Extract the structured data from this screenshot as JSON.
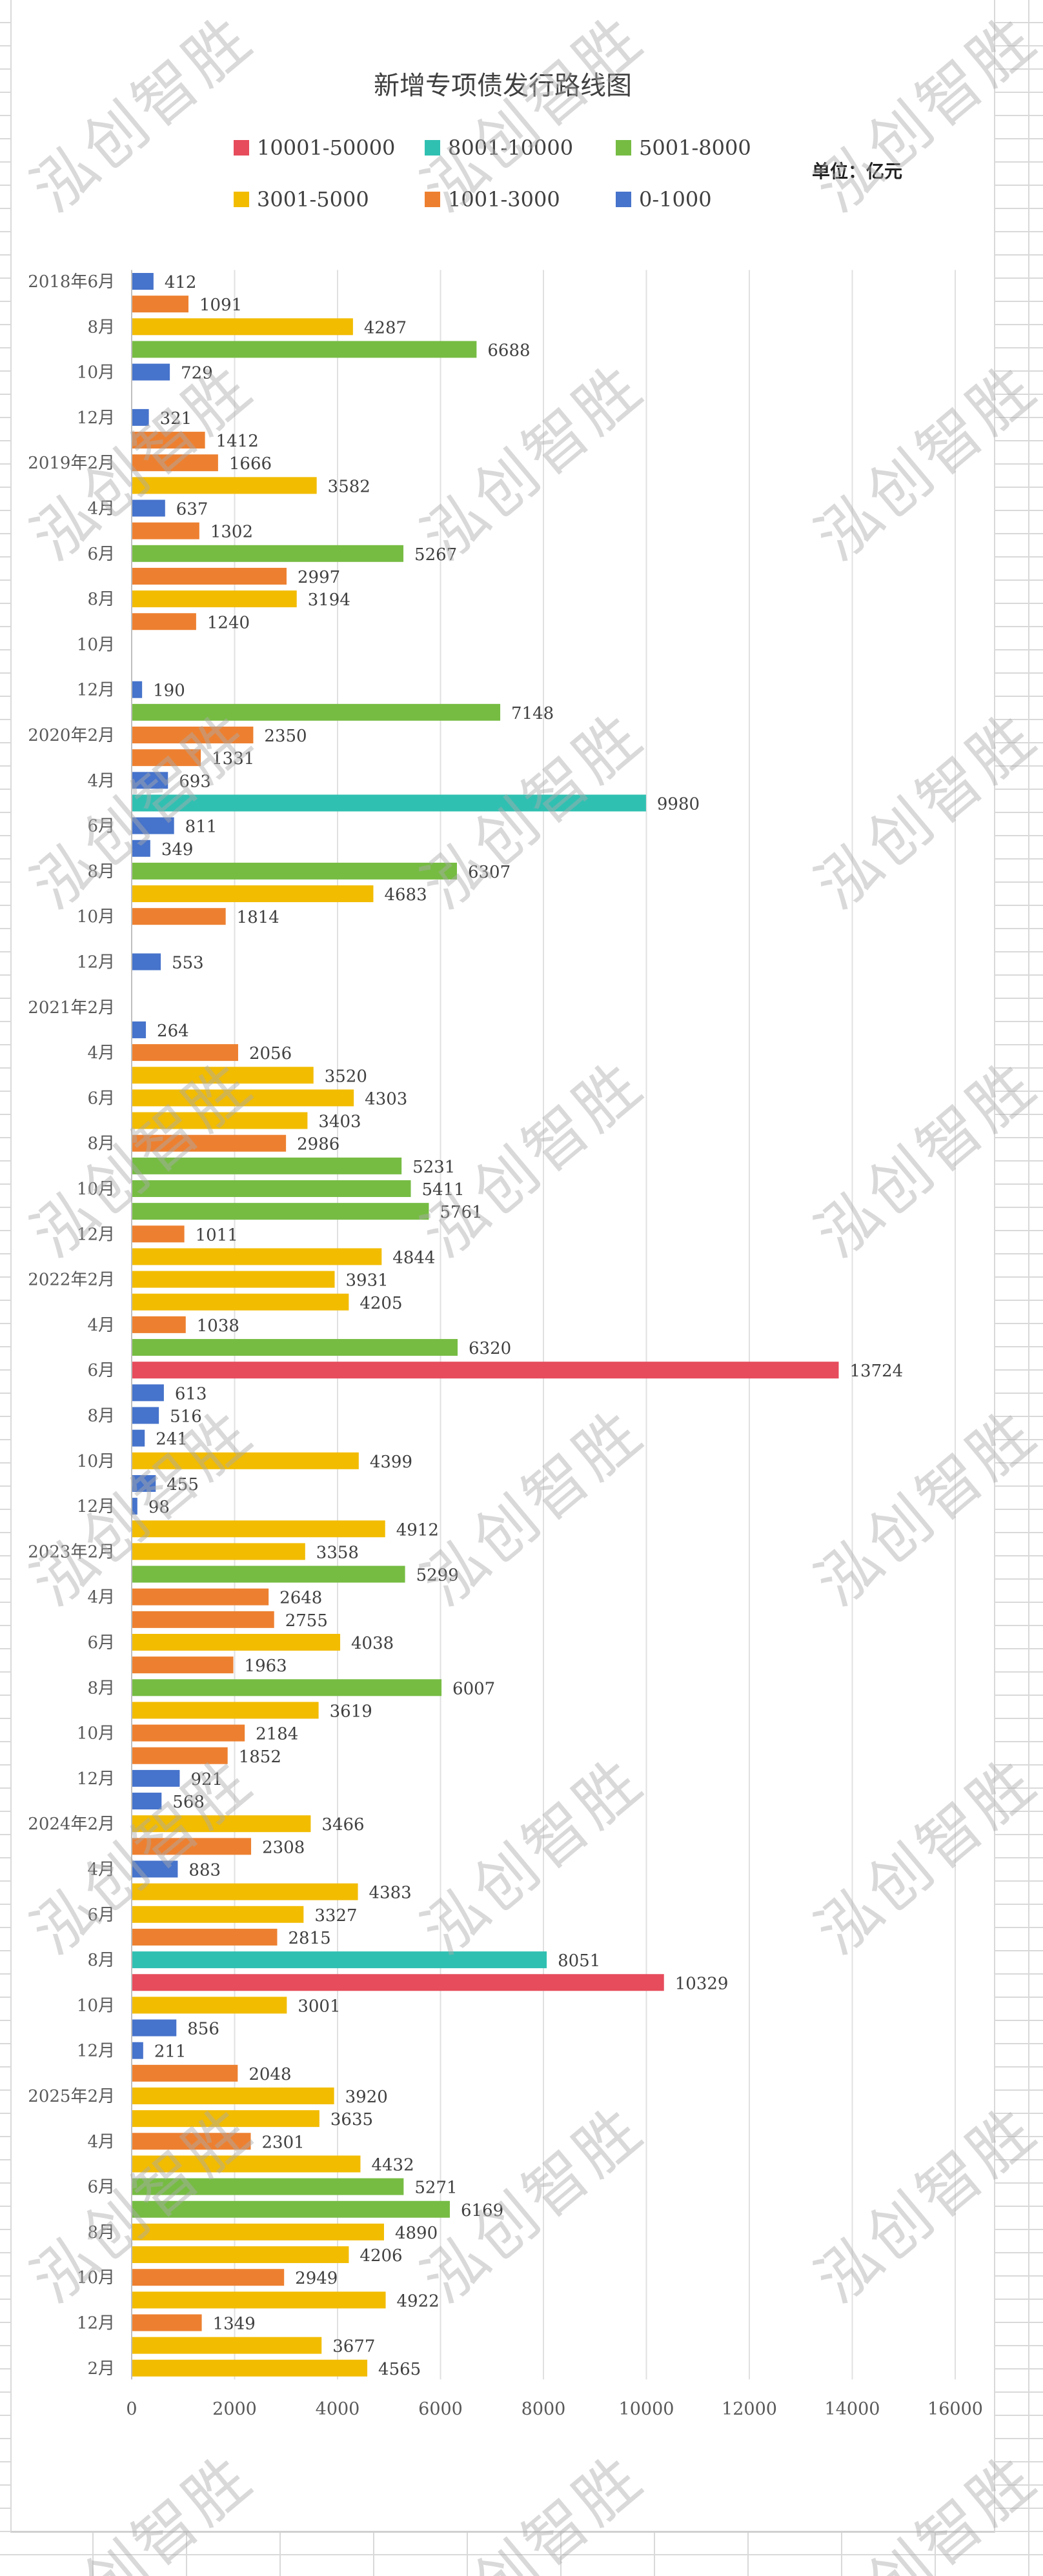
{
  "watermark": "泓创智胜",
  "unit_label": "单位：亿元",
  "chart_data": {
    "type": "bar",
    "orientation": "horizontal",
    "title": "新增专项债发行路线图",
    "xlabel": "",
    "ylabel": "",
    "xlim": [
      0,
      16000
    ],
    "x_ticks": [
      "0",
      "2000",
      "4000",
      "6000",
      "8000",
      "10000",
      "12000",
      "14000",
      "16000"
    ],
    "grid": true,
    "legend_position": "top",
    "legend": [
      {
        "name": "10001-50000",
        "min": 10001,
        "max": 50000,
        "color": "#E64C5C"
      },
      {
        "name": "8001-10000",
        "min": 8001,
        "max": 10000,
        "color": "#30C0B2"
      },
      {
        "name": "5001-8000",
        "min": 5001,
        "max": 8000,
        "color": "#76BC43"
      },
      {
        "name": "3001-5000",
        "min": 3001,
        "max": 5000,
        "color": "#F2BC00"
      },
      {
        "name": "1001-3000",
        "min": 1001,
        "max": 3000,
        "color": "#ED8030"
      },
      {
        "name": "0-1000",
        "min": 0,
        "max": 1000,
        "color": "#4673CB"
      }
    ],
    "categories": [
      "2018年6月",
      "",
      "8月",
      "",
      "10月",
      "",
      "12月",
      "",
      "2019年2月",
      "",
      "4月",
      "",
      "6月",
      "",
      "8月",
      "",
      "10月",
      "",
      "12月",
      "",
      "2020年2月",
      "",
      "4月",
      "",
      "6月",
      "",
      "8月",
      "",
      "10月",
      "",
      "12月",
      "",
      "2021年2月",
      "",
      "4月",
      "",
      "6月",
      "",
      "8月",
      "",
      "10月",
      "",
      "12月",
      "",
      "2022年2月",
      "",
      "4月",
      "",
      "6月",
      "",
      "8月",
      "",
      "10月",
      "",
      "12月",
      "",
      "2023年2月",
      "",
      "4月",
      "",
      "6月",
      "",
      "8月",
      "",
      "10月",
      "",
      "12月",
      "",
      "2024年2月",
      "",
      "4月",
      "",
      "6月",
      "",
      "8月",
      "",
      "10月",
      "",
      "12月",
      "",
      "2025年2月",
      "",
      "4月",
      "",
      "6月",
      "",
      "8月",
      "",
      "10月",
      "",
      "12月",
      "",
      "2月"
    ],
    "values": [
      412,
      1091,
      4287,
      6688,
      729,
      null,
      321,
      1412,
      1666,
      3582,
      637,
      1302,
      5267,
      2997,
      3194,
      1240,
      null,
      null,
      190,
      7148,
      2350,
      1331,
      693,
      9980,
      811,
      349,
      6307,
      4683,
      1814,
      null,
      553,
      null,
      null,
      264,
      2056,
      3520,
      4303,
      3403,
      2986,
      5231,
      5411,
      5761,
      1011,
      4844,
      3931,
      4205,
      1038,
      6320,
      13724,
      613,
      516,
      241,
      4399,
      455,
      98,
      4912,
      3358,
      5299,
      2648,
      2755,
      4038,
      1963,
      6007,
      3619,
      2184,
      1852,
      921,
      568,
      3466,
      2308,
      883,
      4383,
      3327,
      2815,
      8051,
      10329,
      3001,
      856,
      211,
      2048,
      3920,
      3635,
      2301,
      4432,
      5271,
      6169,
      4890,
      4206,
      2949,
      4922,
      1349,
      3677,
      4565
    ]
  }
}
